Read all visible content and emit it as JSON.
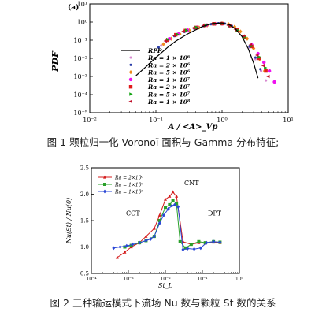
{
  "figure1": {
    "panel_label": "(a)",
    "caption": "图 1 颗粒归一化 Voronoï 面积与 Gamma 分布特征;",
    "chart_data": {
      "type": "scatter",
      "ylabel": "PDF",
      "xlabel": "A / <A>_Vp",
      "x_scale": "log",
      "y_scale": "log",
      "xlim": [
        0.01,
        10
      ],
      "ylim": [
        1e-05,
        10
      ],
      "x_ticks": [
        "10⁻²",
        "10⁻¹",
        "10⁰",
        "10¹"
      ],
      "y_ticks": [
        "10⁻⁵",
        "10⁻⁴",
        "10⁻³",
        "10⁻²",
        "10⁻¹",
        "10⁰",
        "10¹"
      ],
      "legend_position": "bottom-center",
      "fit_line": {
        "name": "RPP",
        "color": "#000000",
        "x": [
          0.05,
          0.07,
          0.1,
          0.15,
          0.2,
          0.3,
          0.5,
          0.7,
          1.0,
          1.3,
          1.6,
          2.0,
          2.5,
          3.0,
          3.5
        ],
        "y": [
          0.0011,
          0.0033,
          0.011,
          0.04,
          0.09,
          0.22,
          0.56,
          0.82,
          0.9,
          0.7,
          0.42,
          0.16,
          0.033,
          0.0055,
          0.0008
        ]
      },
      "series": [
        {
          "name": "Ra = 1 × 10⁶",
          "color": "#d889d0",
          "marker": "circle-small",
          "x": [
            0.12,
            0.15,
            0.2,
            0.28,
            0.4,
            0.55,
            0.7,
            0.9,
            1.1,
            1.4,
            1.7,
            2.1,
            2.6,
            3.2,
            3.9,
            4.6
          ],
          "y": [
            0.05,
            0.1,
            0.18,
            0.3,
            0.45,
            0.62,
            0.78,
            0.86,
            0.82,
            0.6,
            0.35,
            0.14,
            0.04,
            0.009,
            0.002,
            0.0006
          ]
        },
        {
          "name": "Ra = 2 × 10⁶",
          "color": "#2a3da8",
          "marker": "circle-small",
          "x": [
            0.11,
            0.14,
            0.19,
            0.27,
            0.38,
            0.52,
            0.68,
            0.88,
            1.1,
            1.4,
            1.7,
            2.1,
            2.6,
            3.2,
            3.8
          ],
          "y": [
            0.04,
            0.09,
            0.17,
            0.29,
            0.44,
            0.6,
            0.76,
            0.86,
            0.83,
            0.62,
            0.37,
            0.15,
            0.045,
            0.011,
            0.0025
          ]
        },
        {
          "name": "Ra = 5 × 10⁶",
          "color": "#f08a1c",
          "marker": "diamond",
          "x": [
            0.13,
            0.17,
            0.23,
            0.32,
            0.45,
            0.6,
            0.8,
            1.0,
            1.25,
            1.55,
            1.9,
            2.4,
            3.0,
            3.7,
            4.4
          ],
          "y": [
            0.06,
            0.12,
            0.22,
            0.35,
            0.5,
            0.66,
            0.8,
            0.85,
            0.77,
            0.55,
            0.3,
            0.12,
            0.035,
            0.009,
            0.002
          ]
        },
        {
          "name": "Ra = 1 × 10⁷",
          "color": "#ee10ee",
          "marker": "circle",
          "x": [
            0.16,
            0.22,
            0.3,
            0.42,
            0.58,
            0.78,
            1.0,
            1.3,
            1.7,
            2.2,
            2.8,
            3.5,
            4.3,
            5.2,
            6.2
          ],
          "y": [
            0.12,
            0.22,
            0.36,
            0.52,
            0.68,
            0.8,
            0.8,
            0.62,
            0.36,
            0.16,
            0.055,
            0.018,
            0.006,
            0.002,
            0.0005
          ]
        },
        {
          "name": "Ra = 2 × 10⁷",
          "color": "#e01a1a",
          "marker": "square",
          "x": [
            0.15,
            0.2,
            0.28,
            0.4,
            0.55,
            0.75,
            1.0,
            1.3,
            1.7,
            2.2,
            2.8,
            3.6,
            4.6
          ],
          "y": [
            0.1,
            0.2,
            0.34,
            0.5,
            0.66,
            0.8,
            0.82,
            0.64,
            0.37,
            0.15,
            0.045,
            0.01,
            0.002
          ]
        },
        {
          "name": "Ra = 5 × 10⁷",
          "color": "#13a413",
          "marker": "triangle-right",
          "x": [
            0.15,
            0.21,
            0.29,
            0.41,
            0.57,
            0.77,
            1.0,
            1.3,
            1.7,
            2.2,
            2.8,
            3.6,
            4.5
          ],
          "y": [
            0.11,
            0.21,
            0.35,
            0.51,
            0.67,
            0.8,
            0.82,
            0.63,
            0.36,
            0.15,
            0.048,
            0.012,
            0.003
          ]
        },
        {
          "name": "Ra = 1 × 10⁸",
          "color": "#c0102a",
          "marker": "triangle-left",
          "x": [
            0.14,
            0.19,
            0.26,
            0.37,
            0.52,
            0.72,
            0.95,
            1.25,
            1.6,
            2.1,
            2.7,
            3.4,
            4.2,
            5.0
          ],
          "y": [
            0.09,
            0.18,
            0.31,
            0.47,
            0.63,
            0.78,
            0.84,
            0.66,
            0.4,
            0.17,
            0.055,
            0.015,
            0.004,
            0.001
          ]
        }
      ]
    }
  },
  "figure2": {
    "caption": "图 2 三种输运模式下流场 Nu 数与颗粒 St 数的关系",
    "chart_data": {
      "type": "line",
      "ylabel": "Nu(St) / Nu(0)",
      "xlabel": "St_L",
      "x_scale": "log",
      "xlim": [
        0.0001,
        1
      ],
      "ylim": [
        0.5,
        2.5
      ],
      "x_ticks": [
        "10⁻⁴",
        "10⁻³",
        "10⁻²",
        "10⁻¹",
        "10⁰"
      ],
      "y_ticks": [
        "0.5",
        "1.0",
        "1.5",
        "2.0",
        "2.5"
      ],
      "reference_line": {
        "y": 1.0,
        "style": "dashed"
      },
      "legend_position": "top-left",
      "annotations": [
        "CCT",
        "CNT",
        "DPT"
      ],
      "series": [
        {
          "name": "Ra = 2×10⁶",
          "color": "#d41c1c",
          "marker": "triangle-up",
          "x": [
            0.0005,
            0.0008,
            0.0012,
            0.002,
            0.003,
            0.005,
            0.007,
            0.01,
            0.013,
            0.016,
            0.02,
            0.03,
            0.05,
            0.08,
            0.12,
            0.2,
            0.3
          ],
          "y": [
            0.8,
            0.9,
            1.0,
            1.08,
            1.2,
            1.35,
            1.6,
            1.9,
            1.96,
            2.04,
            1.96,
            1.1,
            1.05,
            1.08,
            1.07,
            1.09,
            1.08
          ]
        },
        {
          "name": "Ra = 1×10⁷",
          "color": "#2aa02a",
          "marker": "square",
          "x": [
            0.0008,
            0.0012,
            0.002,
            0.003,
            0.005,
            0.007,
            0.01,
            0.013,
            0.016,
            0.02,
            0.025,
            0.035,
            0.05,
            0.08,
            0.12,
            0.2,
            0.3
          ],
          "y": [
            1.0,
            1.03,
            1.08,
            1.12,
            1.2,
            1.5,
            1.75,
            1.8,
            1.88,
            1.82,
            1.1,
            0.98,
            1.05,
            1.1,
            1.08,
            1.1,
            1.09
          ]
        },
        {
          "name": "Ra = 1×10⁸",
          "color": "#2b48d6",
          "marker": "diamond",
          "x": [
            0.0004,
            0.0006,
            0.0009,
            0.0013,
            0.002,
            0.003,
            0.004,
            0.005,
            0.007,
            0.009,
            0.012,
            0.015,
            0.018,
            0.022,
            0.03,
            0.04,
            0.06,
            0.09,
            0.13,
            0.2,
            0.3
          ],
          "y": [
            0.98,
            1.0,
            1.02,
            1.05,
            1.08,
            1.12,
            1.15,
            1.2,
            1.45,
            1.6,
            1.72,
            1.78,
            1.8,
            1.76,
            0.95,
            0.97,
            0.96,
            0.98,
            1.08,
            1.1,
            1.09
          ]
        }
      ]
    }
  }
}
